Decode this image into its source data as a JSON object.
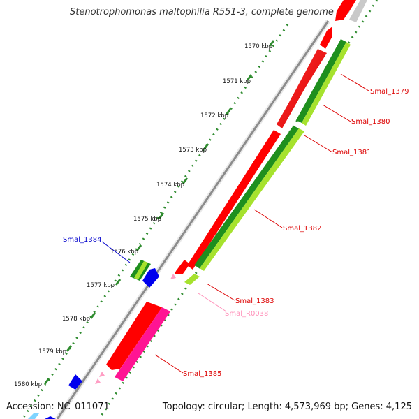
{
  "title": "Stenotrophomonas maltophilia R551-3, complete genome",
  "footer": {
    "accession": "Accession: NC_011071",
    "topology": "Topology: circular; Length: 4,573,969 bp; Genes: 4,125"
  },
  "colors": {
    "backbone": "#8c8c8c",
    "red_cds": "#ff0000",
    "dark_green": "#1e8f1e",
    "light_green": "#a6e22e",
    "pink": "#ff1493",
    "light_pink": "#ff9ec4",
    "blue": "#0000ee",
    "dots": "#2e8b2e"
  },
  "ticks": [
    {
      "label": "1570 kbp"
    },
    {
      "label": "1571 kbp"
    },
    {
      "label": "1572 kbp"
    },
    {
      "label": "1573 kbp"
    },
    {
      "label": "1574 kbp"
    },
    {
      "label": "1575 kbp"
    },
    {
      "label": "1576 kbp"
    },
    {
      "label": "1577 kbp"
    },
    {
      "label": "1578 kbp"
    },
    {
      "label": "1579 kbp"
    },
    {
      "label": "1580 kbp"
    }
  ],
  "gene_labels": [
    {
      "text": "Smal_1379",
      "color": "#dd0000"
    },
    {
      "text": "Smal_1380",
      "color": "#dd0000"
    },
    {
      "text": "Smal_1381",
      "color": "#dd0000"
    },
    {
      "text": "Smal_1382",
      "color": "#dd0000"
    },
    {
      "text": "Smal_1383",
      "color": "#dd0000"
    },
    {
      "text": "Smal_R0038",
      "color": "#ff8fb8"
    },
    {
      "text": "Smal_1384",
      "color": "#0000cc"
    },
    {
      "text": "Smal_1385",
      "color": "#dd0000"
    }
  ]
}
